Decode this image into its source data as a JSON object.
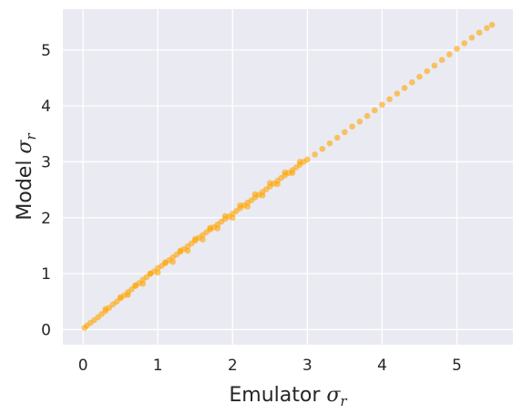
{
  "chart_data": {
    "type": "scatter",
    "title": "",
    "xlabel": {
      "text": "Emulator ",
      "symbol": "σ",
      "subscript": "r"
    },
    "ylabel": {
      "text": "Model ",
      "symbol": "σ",
      "subscript": "r"
    },
    "xlim": [
      -0.27,
      5.75
    ],
    "ylim": [
      -0.27,
      5.73
    ],
    "xticks": [
      0,
      1,
      2,
      3,
      4,
      5
    ],
    "yticks": [
      0,
      1,
      2,
      3,
      4,
      5
    ],
    "xtick_labels": [
      "0",
      "1",
      "2",
      "3",
      "4",
      "5"
    ],
    "ytick_labels": [
      "0",
      "1",
      "2",
      "3",
      "4",
      "5"
    ],
    "grid": true,
    "legend": "none",
    "series": [
      {
        "marker": "circle",
        "color": "#ffa500",
        "alpha": 0.6,
        "x": [
          0.02,
          0.05,
          0.1,
          0.15,
          0.2,
          0.25,
          0.3,
          0.35,
          0.4,
          0.45,
          0.5,
          0.55,
          0.6,
          0.65,
          0.7,
          0.75,
          0.8,
          0.85,
          0.9,
          0.95,
          1.0,
          1.05,
          1.1,
          1.15,
          1.2,
          1.25,
          1.3,
          1.35,
          1.4,
          1.45,
          1.5,
          1.55,
          1.6,
          1.65,
          1.7,
          1.75,
          1.8,
          1.85,
          1.9,
          1.95,
          2.0,
          2.05,
          2.1,
          2.15,
          2.2,
          2.25,
          2.3,
          2.35,
          2.4,
          2.45,
          2.5,
          2.55,
          2.6,
          2.65,
          2.7,
          2.75,
          2.8,
          2.85,
          2.9,
          2.95,
          3.0,
          3.1,
          3.2,
          3.3,
          3.4,
          3.5,
          3.6,
          3.7,
          3.8,
          3.9,
          4.0,
          4.1,
          4.2,
          4.3,
          4.4,
          4.5,
          4.6,
          4.7,
          4.8,
          4.9,
          5.0,
          5.1,
          5.2,
          5.3,
          5.4,
          5.47,
          0.3,
          0.5,
          0.7,
          0.9,
          1.1,
          1.3,
          1.5,
          1.7,
          1.9,
          2.1,
          2.3,
          2.5,
          2.7,
          2.9,
          0.6,
          0.8,
          1.0,
          1.2,
          1.4,
          1.6,
          1.8,
          2.0,
          2.2,
          2.4,
          2.6,
          2.8
        ],
        "y": [
          0.03,
          0.07,
          0.12,
          0.17,
          0.22,
          0.28,
          0.33,
          0.39,
          0.45,
          0.5,
          0.56,
          0.61,
          0.67,
          0.72,
          0.78,
          0.83,
          0.89,
          0.94,
          1.0,
          1.04,
          1.1,
          1.14,
          1.19,
          1.24,
          1.29,
          1.34,
          1.39,
          1.44,
          1.49,
          1.54,
          1.59,
          1.64,
          1.69,
          1.74,
          1.79,
          1.83,
          1.88,
          1.93,
          1.98,
          2.02,
          2.07,
          2.12,
          2.17,
          2.22,
          2.27,
          2.31,
          2.36,
          2.41,
          2.46,
          2.51,
          2.56,
          2.61,
          2.66,
          2.71,
          2.76,
          2.8,
          2.85,
          2.9,
          2.95,
          3.0,
          3.04,
          3.13,
          3.23,
          3.33,
          3.43,
          3.53,
          3.63,
          3.72,
          3.82,
          3.92,
          4.02,
          4.12,
          4.22,
          4.32,
          4.42,
          4.52,
          4.62,
          4.72,
          4.82,
          4.92,
          5.02,
          5.12,
          5.22,
          5.31,
          5.39,
          5.45,
          0.37,
          0.58,
          0.79,
          1.0,
          1.2,
          1.41,
          1.62,
          1.82,
          2.03,
          2.22,
          2.42,
          2.62,
          2.81,
          3.0,
          0.62,
          0.82,
          1.02,
          1.21,
          1.41,
          1.61,
          1.81,
          2.0,
          2.2,
          2.4,
          2.6,
          2.8
        ]
      }
    ]
  }
}
